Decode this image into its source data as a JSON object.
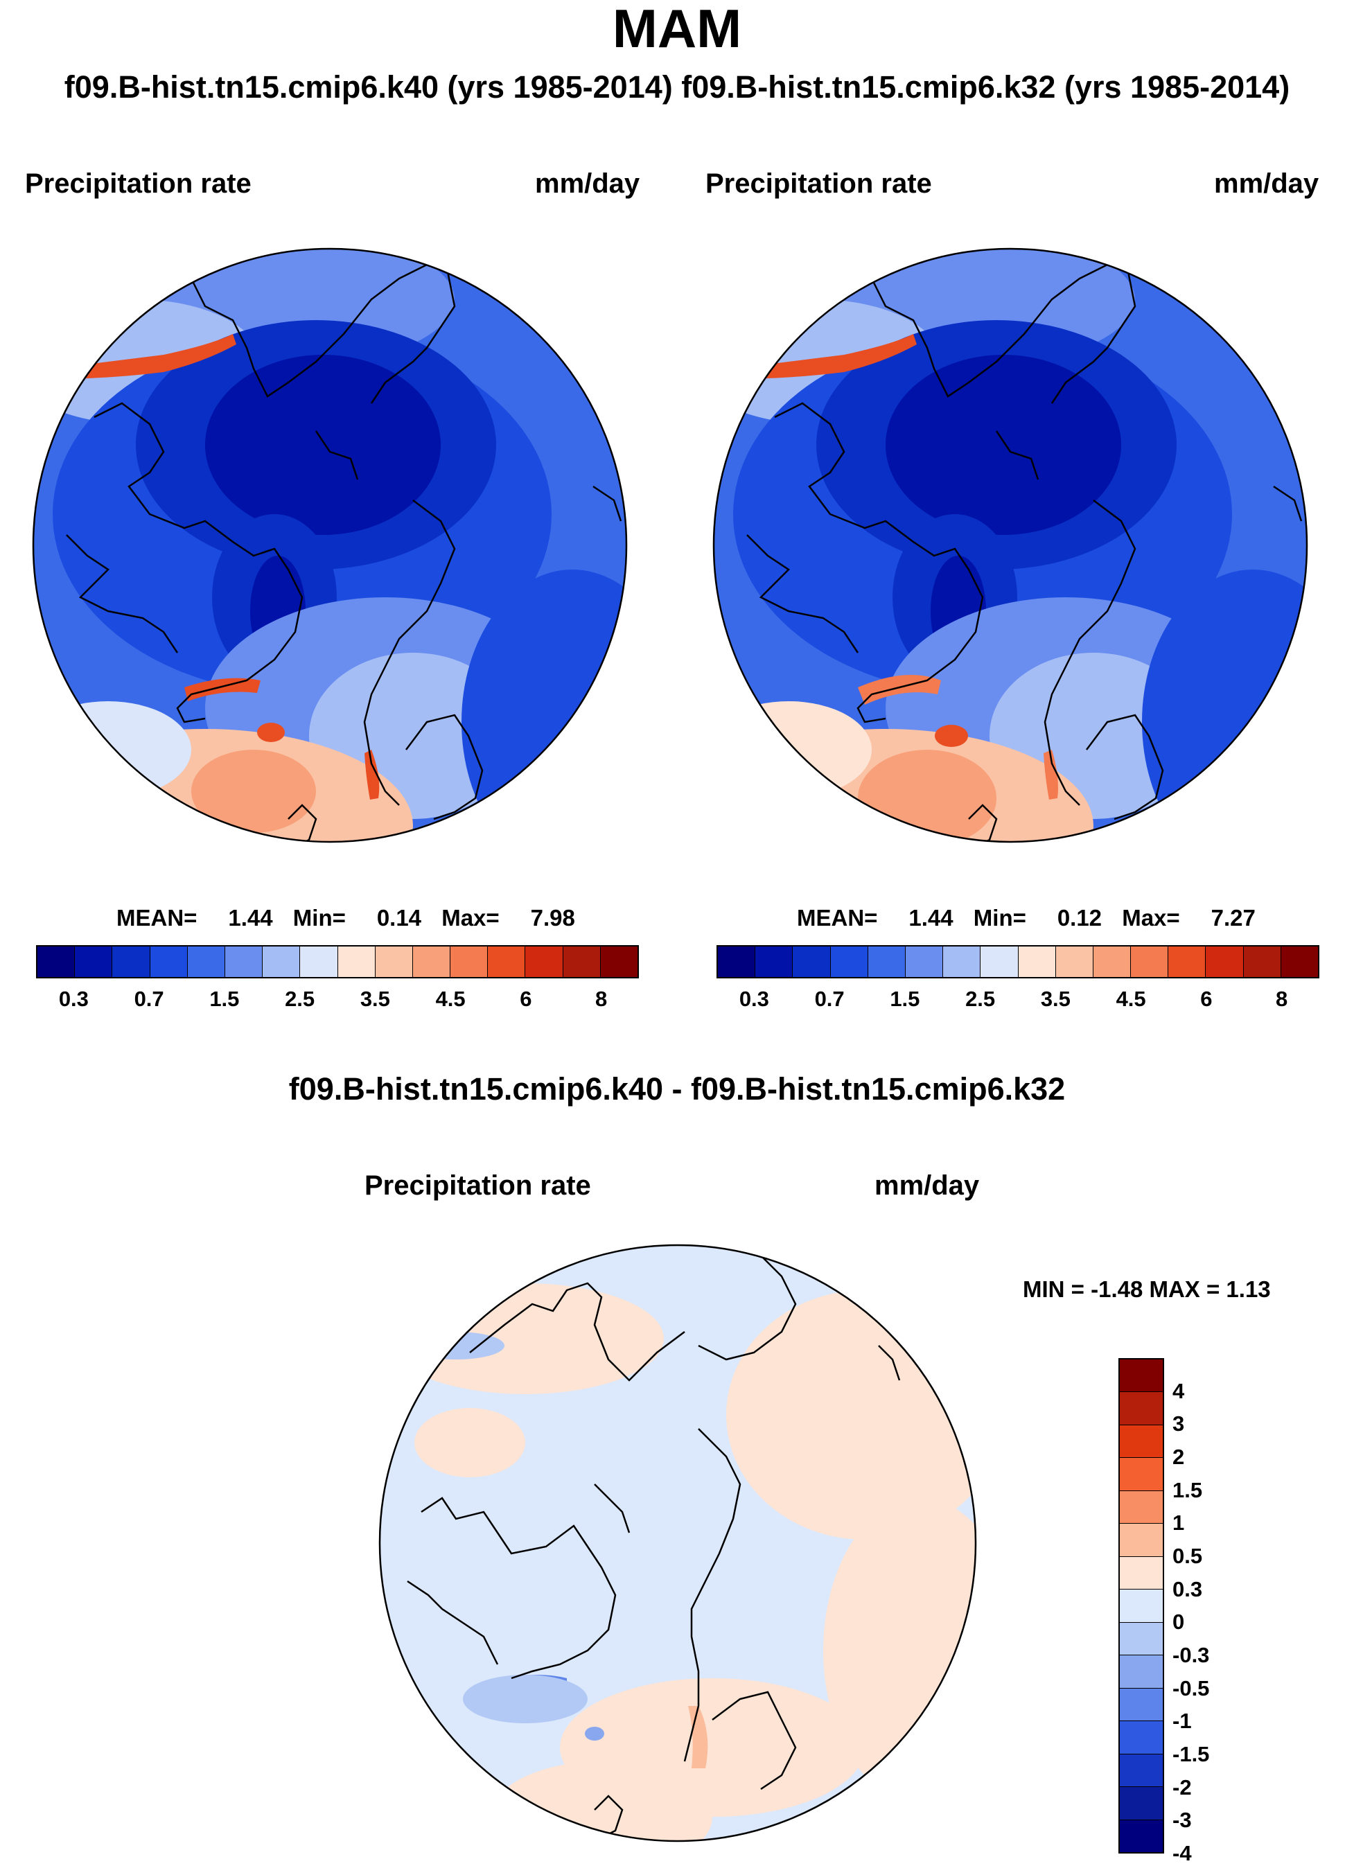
{
  "title": "MAM",
  "subtitle": "f09.B-hist.tn15.cmip6.k40 (yrs 1985-2014) f09.B-hist.tn15.cmip6.k32 (yrs 1985-2014)",
  "panels": [
    {
      "variable": "Precipitation rate",
      "units": "mm/day",
      "stats": {
        "mean_label": "MEAN=",
        "mean": "1.44",
        "min_label": "Min=",
        "min": "0.14",
        "max_label": "Max=",
        "max": "7.98"
      }
    },
    {
      "variable": "Precipitation rate",
      "units": "mm/day",
      "stats": {
        "mean_label": "MEAN=",
        "mean": "1.44",
        "min_label": "Min=",
        "min": "0.12",
        "max_label": "Max=",
        "max": "7.27"
      }
    }
  ],
  "colorbar": {
    "colors": [
      "#00007f",
      "#0012a8",
      "#0a2fc4",
      "#1c4cdf",
      "#3a6ae8",
      "#6a8ef0",
      "#a5bdf5",
      "#dbe6fb",
      "#fde4d4",
      "#fbc3a5",
      "#f7a07a",
      "#f47a4f",
      "#e94e23",
      "#d0290f",
      "#ab1b0b",
      "#800000"
    ],
    "ticks": [
      "0.3",
      "0.7",
      "1.5",
      "2.5",
      "3.5",
      "4.5",
      "6",
      "8"
    ]
  },
  "diff": {
    "title": "f09.B-hist.tn15.cmip6.k40 - f09.B-hist.tn15.cmip6.k32",
    "variable": "Precipitation rate",
    "units": "mm/day",
    "minmax": "MIN =  -1.48 MAX =   1.13",
    "colors": [
      "#800000",
      "#b31f0b",
      "#e0380f",
      "#f4602f",
      "#f88f64",
      "#fbbc9b",
      "#fde4d4",
      "#dce8fb",
      "#b2c8f5",
      "#88a7ef",
      "#5d84ea",
      "#2f59e0",
      "#1638c4",
      "#0a1c9a",
      "#00007f"
    ],
    "ticks": [
      "4",
      "3",
      "2",
      "1.5",
      "1",
      "0.5",
      "0.3",
      "0",
      "-0.3",
      "-0.5",
      "-1",
      "-1.5",
      "-2",
      "-3",
      "-4"
    ]
  }
}
